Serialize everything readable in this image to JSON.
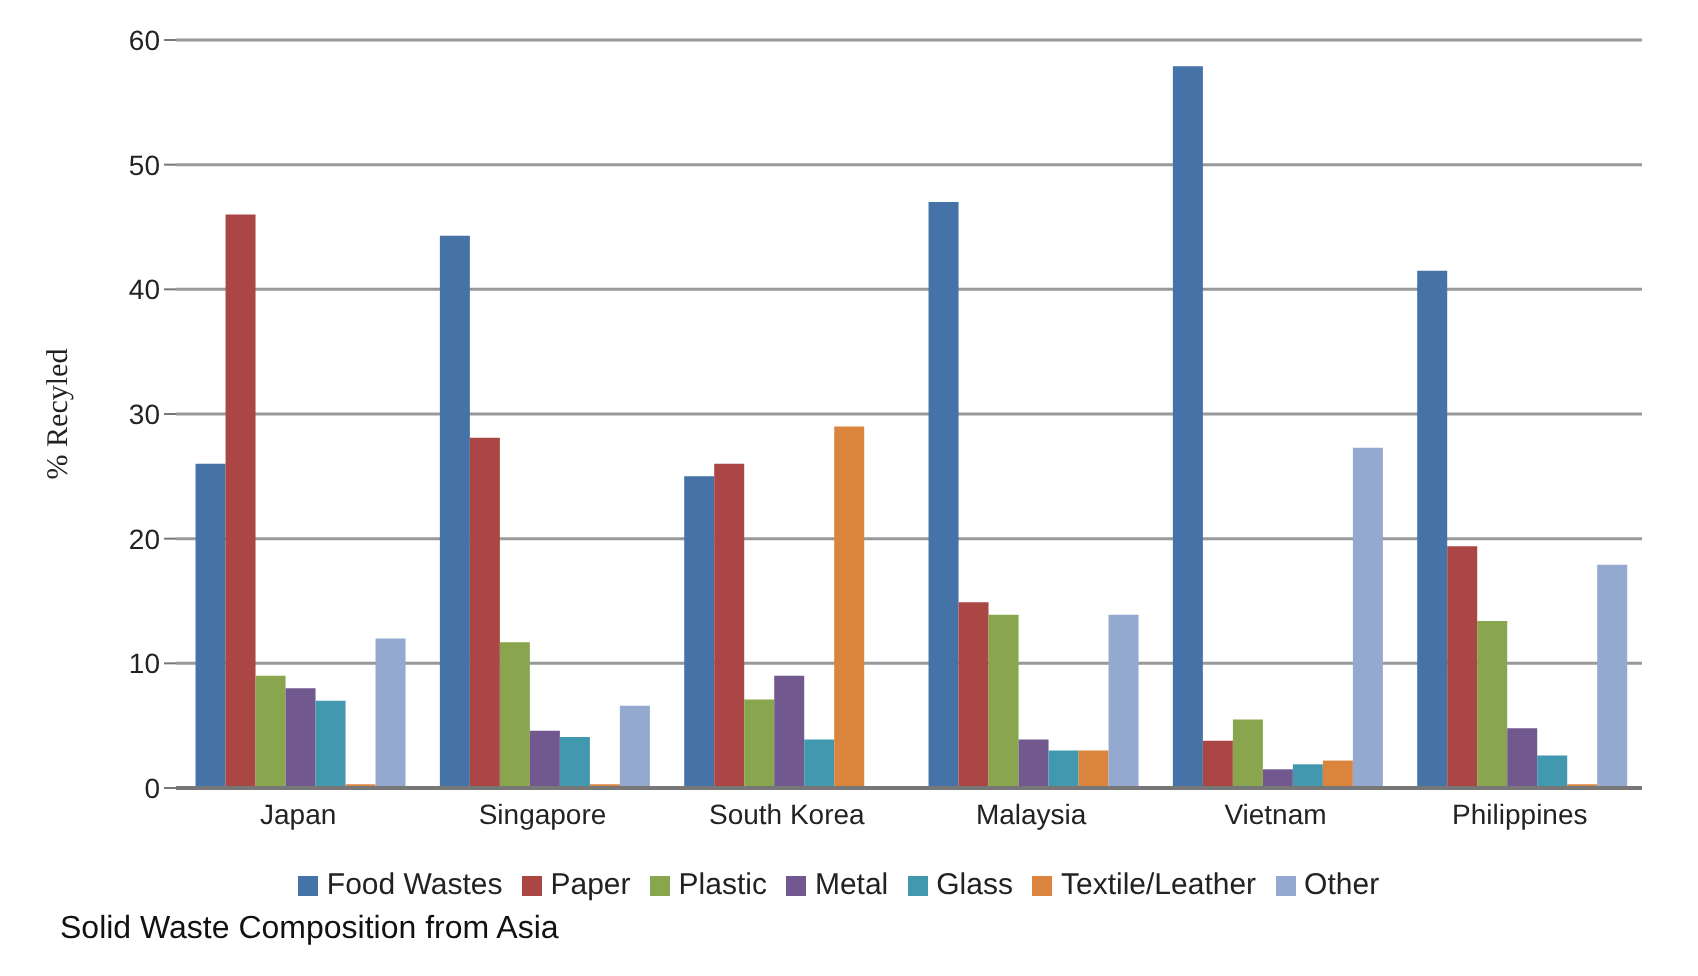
{
  "chart_data": {
    "type": "bar",
    "title": "Solid Waste Composition from Asia",
    "ylabel": "% Recyled",
    "categories": [
      "Japan",
      "Singapore",
      "South Korea",
      "Malaysia",
      "Vietnam",
      "Philippines"
    ],
    "series": [
      {
        "name": "Food Wastes",
        "color": "#4572a7",
        "values": [
          26,
          44.3,
          25,
          47,
          57.9,
          41.5
        ]
      },
      {
        "name": "Paper",
        "color": "#aa4643",
        "values": [
          46,
          28.1,
          26,
          14.9,
          3.8,
          19.4
        ]
      },
      {
        "name": "Plastic",
        "color": "#89a54e",
        "values": [
          9,
          11.7,
          7.1,
          13.9,
          5.5,
          13.4
        ]
      },
      {
        "name": "Metal",
        "color": "#71588f",
        "values": [
          8,
          4.6,
          9,
          3.9,
          1.5,
          4.8
        ]
      },
      {
        "name": "Glass",
        "color": "#4198af",
        "values": [
          7,
          4.1,
          3.9,
          3,
          1.9,
          2.6
        ]
      },
      {
        "name": "Textile/Leather",
        "color": "#db843d",
        "values": [
          0.3,
          0.3,
          29,
          3,
          2.2,
          0.3
        ]
      },
      {
        "name": "Other",
        "color": "#93a9cf",
        "values": [
          12,
          6.6,
          null,
          13.9,
          27.3,
          17.9
        ]
      }
    ],
    "ylim": [
      0,
      60
    ],
    "yticks": [
      0,
      10,
      20,
      30,
      40,
      50,
      60
    ],
    "grid": "y",
    "legend": "bottom"
  }
}
